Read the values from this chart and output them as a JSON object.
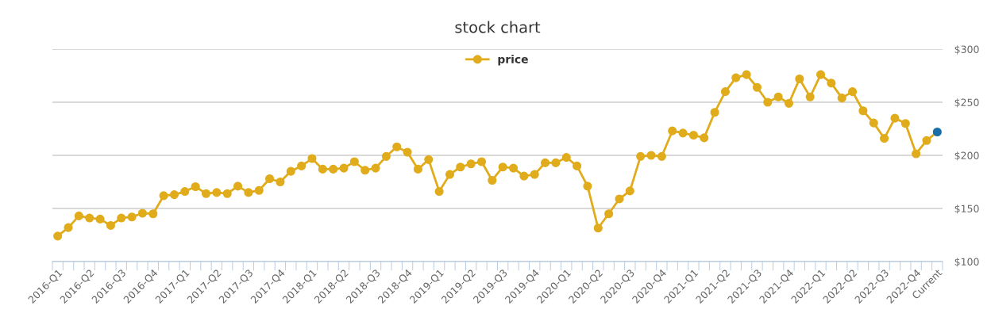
{
  "chart_data": {
    "type": "line",
    "title": "stock chart",
    "categories": [
      "2016-Q1",
      null,
      null,
      "2016-Q2",
      null,
      null,
      "2016-Q3",
      null,
      null,
      "2016-Q4",
      null,
      null,
      "2017-Q1",
      null,
      null,
      "2017-Q2",
      null,
      null,
      "2017-Q3",
      null,
      null,
      "2017-Q4",
      null,
      null,
      "2018-Q1",
      null,
      null,
      "2018-Q2",
      null,
      null,
      "2018-Q3",
      null,
      null,
      "2018-Q4",
      null,
      null,
      "2019-Q1",
      null,
      null,
      "2019-Q2",
      null,
      null,
      "2019-Q3",
      null,
      null,
      "2019-Q4",
      null,
      null,
      "2020-Q1",
      null,
      null,
      "2020-Q2",
      null,
      null,
      "2020-Q3",
      null,
      null,
      "2020-Q4",
      null,
      null,
      "2021-Q1",
      null,
      null,
      "2021-Q2",
      null,
      null,
      "2021-Q3",
      null,
      null,
      "2021-Q4",
      null,
      null,
      "2022-Q1",
      null,
      null,
      "2022-Q2",
      null,
      null,
      "2022-Q3",
      null,
      null,
      "2022-Q4",
      null,
      "Current"
    ],
    "series": [
      {
        "name": "price",
        "color": "#e0ac1c",
        "values": [
          124,
          132,
          143,
          141,
          140,
          134,
          141,
          142,
          145.5,
          145,
          162,
          163,
          166,
          170.5,
          164,
          165,
          164,
          171,
          165,
          167,
          178,
          175,
          185,
          190,
          197,
          187,
          187,
          188,
          194,
          186,
          188,
          199,
          208,
          203,
          187,
          196,
          166,
          182,
          189,
          192,
          194,
          176.5,
          189,
          188,
          180.5,
          182,
          193,
          193,
          198,
          190,
          171,
          131.5,
          145,
          159,
          166.5,
          199,
          200,
          199,
          223,
          221,
          219,
          216.5,
          240.5,
          260,
          273,
          276,
          264,
          250,
          255,
          249,
          272,
          255,
          276,
          268,
          254,
          260,
          242,
          230.5,
          216,
          235,
          230,
          201.5,
          214,
          222
        ],
        "colors": [
          "#e0ac1c",
          "#e0ac1c",
          "#e0ac1c",
          "#e0ac1c",
          "#e0ac1c",
          "#e0ac1c",
          "#e0ac1c",
          "#e0ac1c",
          "#e0ac1c",
          "#e0ac1c",
          "#e0ac1c",
          "#e0ac1c",
          "#e0ac1c",
          "#e0ac1c",
          "#e0ac1c",
          "#e0ac1c",
          "#e0ac1c",
          "#e0ac1c",
          "#e0ac1c",
          "#e0ac1c",
          "#e0ac1c",
          "#e0ac1c",
          "#e0ac1c",
          "#e0ac1c",
          "#e0ac1c",
          "#e0ac1c",
          "#e0ac1c",
          "#e0ac1c",
          "#e0ac1c",
          "#e0ac1c",
          "#e0ac1c",
          "#e0ac1c",
          "#e0ac1c",
          "#e0ac1c",
          "#e0ac1c",
          "#e0ac1c",
          "#e0ac1c",
          "#e0ac1c",
          "#e0ac1c",
          "#e0ac1c",
          "#e0ac1c",
          "#e0ac1c",
          "#e0ac1c",
          "#e0ac1c",
          "#e0ac1c",
          "#e0ac1c",
          "#e0ac1c",
          "#e0ac1c",
          "#e0ac1c",
          "#e0ac1c",
          "#e0ac1c",
          "#e0ac1c",
          "#e0ac1c",
          "#e0ac1c",
          "#e0ac1c",
          "#e0ac1c",
          "#e0ac1c",
          "#e0ac1c",
          "#e0ac1c",
          "#e0ac1c",
          "#e0ac1c",
          "#e0ac1c",
          "#e0ac1c",
          "#e0ac1c",
          "#e0ac1c",
          "#e0ac1c",
          "#e0ac1c",
          "#e0ac1c",
          "#e0ac1c",
          "#e0ac1c",
          "#e0ac1c",
          "#e0ac1c",
          "#e0ac1c",
          "#e0ac1c",
          "#e0ac1c",
          "#e0ac1c",
          "#e0ac1c",
          "#e0ac1c",
          "#e0ac1c",
          "#e0ac1c",
          "#e0ac1c",
          "#e0ac1c",
          "#e0ac1c",
          "#1a6fa6"
        ]
      }
    ],
    "ylim": [
      100,
      300
    ],
    "yticks": [
      {
        "value": 100,
        "label": "$100"
      },
      {
        "value": 150,
        "label": "$150"
      },
      {
        "value": 200,
        "label": "$200"
      },
      {
        "value": 250,
        "label": "$250"
      },
      {
        "value": 300,
        "label": "$300"
      }
    ],
    "grid": "y",
    "legend": "top",
    "marker": "circle",
    "line_style": "solid"
  }
}
